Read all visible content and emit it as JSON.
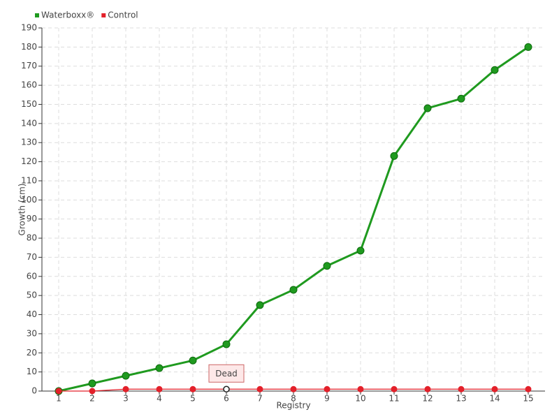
{
  "chart_data": {
    "type": "line",
    "x_label": "Registry",
    "y_label": "Growth (cm)",
    "x": [
      1,
      2,
      3,
      4,
      5,
      6,
      7,
      8,
      9,
      10,
      11,
      12,
      13,
      14,
      15
    ],
    "xlim": [
      0.5,
      15.5
    ],
    "xticks": [
      1,
      2,
      3,
      4,
      5,
      6,
      7,
      8,
      9,
      10,
      11,
      12,
      13,
      14,
      15
    ],
    "ylim": [
      0,
      190
    ],
    "yticks": [
      0,
      10,
      20,
      30,
      40,
      50,
      60,
      70,
      80,
      90,
      100,
      110,
      120,
      130,
      140,
      150,
      160,
      170,
      180,
      190
    ],
    "grid": true,
    "legend": "top-left",
    "series": [
      {
        "name": "Waterboxx®",
        "color": "#1f9a1f",
        "values": [
          0,
          4,
          8,
          12,
          16,
          24.5,
          45,
          53,
          65.5,
          73.5,
          123,
          148,
          153,
          168,
          180
        ]
      },
      {
        "name": "Control",
        "color": "#e3202a",
        "values": [
          0,
          0,
          1,
          1,
          1,
          1,
          1,
          1,
          1,
          1,
          1,
          1,
          1,
          1,
          1
        ]
      }
    ],
    "annotations": [
      {
        "text": "Dead",
        "x": 6,
        "series": "Control"
      }
    ]
  }
}
